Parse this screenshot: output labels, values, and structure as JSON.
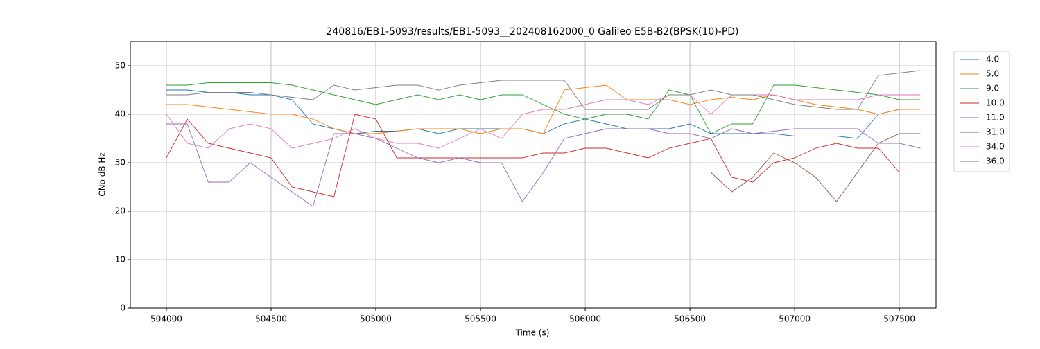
{
  "chart_data": {
    "type": "line",
    "title": "240816/EB1-5093/results/EB1-5093__202408162000_0 Galileo E5B-B2(BPSK(10)-PD)",
    "x_label": "Time (s)",
    "y_label": "CNo dB Hz",
    "x": [
      504000,
      504100,
      504200,
      504300,
      504400,
      504500,
      504600,
      504700,
      504800,
      504900,
      505000,
      505100,
      505200,
      505300,
      505400,
      505500,
      505600,
      505700,
      505800,
      505900,
      506000,
      506100,
      506200,
      506300,
      506400,
      506500,
      506600,
      506700,
      506800,
      506900,
      507000,
      507100,
      507200,
      507300,
      507400,
      507500,
      507600
    ],
    "series": [
      {
        "name": "4.0",
        "color": "#1f77b4",
        "values": [
          45,
          45,
          44.5,
          44.5,
          44,
          44,
          43,
          38,
          37,
          36,
          36.5,
          36.5,
          37,
          36,
          37,
          37,
          37,
          37,
          36,
          38,
          39,
          38,
          37,
          37,
          37,
          38,
          36,
          36,
          36,
          36,
          35.5,
          35.5,
          35.5,
          35,
          40,
          41,
          41
        ]
      },
      {
        "name": "5.0",
        "color": "#ff7f0e",
        "values": [
          42,
          42,
          41.5,
          41,
          40.5,
          40,
          40,
          39,
          37,
          36,
          36,
          36.5,
          37,
          37,
          37,
          36,
          37,
          37,
          36,
          45,
          45.5,
          46,
          43,
          43,
          43,
          42,
          43,
          43.5,
          43,
          44,
          43,
          42,
          41.5,
          41,
          40,
          41,
          41
        ]
      },
      {
        "name": "9.0",
        "color": "#2ca02c",
        "values": [
          46,
          46,
          46.5,
          46.5,
          46.5,
          46.5,
          46,
          45,
          44,
          43,
          42,
          43,
          44,
          43,
          44,
          43,
          44,
          44,
          42,
          40,
          39,
          40,
          40,
          39,
          45,
          44,
          36,
          38,
          38,
          46,
          46,
          45.5,
          45,
          44.5,
          44,
          43,
          43
        ]
      },
      {
        "name": "10.0",
        "color": "#d62728",
        "values": [
          31,
          39,
          34,
          33,
          32,
          31,
          25,
          24,
          23,
          40,
          39,
          31,
          31,
          31,
          31,
          31,
          31,
          31,
          32,
          32,
          33,
          33,
          32,
          31,
          33,
          34,
          35,
          27,
          26,
          30,
          31,
          33,
          34,
          33,
          33,
          28,
          null
        ]
      },
      {
        "name": "11.0",
        "color": "#9467bd",
        "values": [
          38,
          38,
          26,
          26,
          30,
          27,
          24,
          21,
          36,
          36,
          35,
          33,
          31,
          30,
          31,
          30,
          30,
          22,
          28,
          35,
          36,
          37,
          37,
          37,
          36,
          36,
          35,
          37,
          36,
          36.5,
          37,
          37,
          37,
          37,
          34,
          34,
          33
        ]
      },
      {
        "name": "31.0",
        "color": "#8c564b",
        "values": [
          null,
          null,
          null,
          null,
          null,
          null,
          null,
          null,
          null,
          null,
          null,
          null,
          null,
          null,
          null,
          null,
          null,
          null,
          null,
          null,
          null,
          null,
          null,
          null,
          null,
          null,
          28,
          24,
          27,
          32,
          30,
          27,
          22,
          28,
          34,
          36,
          36
        ]
      },
      {
        "name": "34.0",
        "color": "#e377c2",
        "values": [
          40,
          34,
          33,
          37,
          38,
          37,
          33,
          34,
          35,
          37,
          35,
          34,
          34,
          33,
          35,
          37,
          35,
          40,
          41,
          41,
          42,
          43,
          43,
          42,
          44,
          44,
          40,
          44,
          44,
          44,
          43,
          43,
          43,
          43,
          44,
          44,
          44
        ]
      },
      {
        "name": "36.0",
        "color": "#7f7f7f",
        "values": [
          44,
          44,
          44.5,
          44.5,
          44.5,
          44,
          43.5,
          43,
          46,
          45,
          45.5,
          46,
          46,
          45,
          46,
          46.5,
          47,
          47,
          47,
          47,
          41,
          41,
          41,
          41,
          44,
          44,
          45,
          44,
          44,
          43,
          42,
          41.5,
          41,
          41,
          48,
          48.5,
          49
        ]
      }
    ],
    "xlim": [
      503828,
      507675
    ],
    "ylim": [
      0,
      55
    ],
    "xticks": [
      504000,
      504500,
      505000,
      505500,
      506000,
      506500,
      507000,
      507500
    ],
    "yticks": [
      0,
      10,
      20,
      30,
      40,
      50
    ],
    "grid": true,
    "legend": "outside-upper-right"
  }
}
